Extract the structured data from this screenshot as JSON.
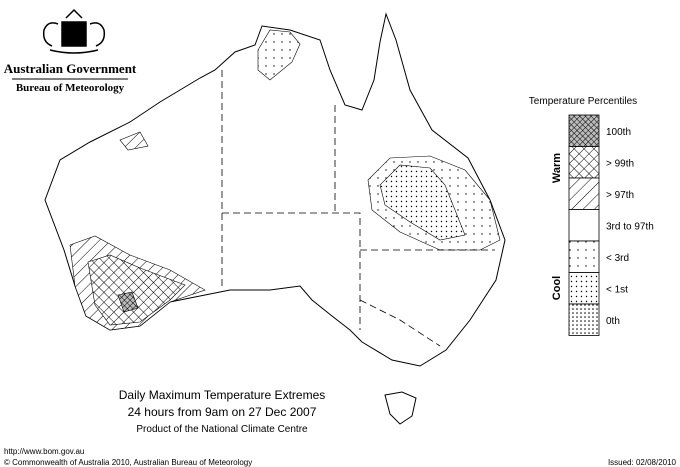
{
  "header": {
    "government": "Australian Government",
    "bureau": "Bureau of Meteorology"
  },
  "legend": {
    "title": "Temperature Percentiles",
    "warm": "Warm",
    "cool": "Cool",
    "items": [
      "100th",
      "> 99th",
      "> 97th",
      "3rd to 97th",
      "< 3rd",
      "< 1st",
      "0th"
    ]
  },
  "caption": {
    "title": "Daily Maximum Temperature Extremes",
    "subtitle": "24 hours from 9am on 27 Dec 2007",
    "product": "Product of the National Climate Centre"
  },
  "footer": {
    "url": "http://www.bom.gov.au",
    "copyright": "© Commonwealth of Australia 2010, Australian Bureau of Meteorology",
    "issued": "Issued: 02/08/2010"
  }
}
